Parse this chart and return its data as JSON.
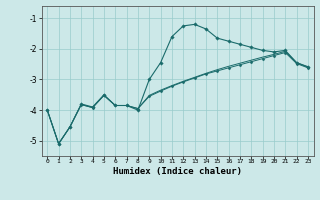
{
  "title": "",
  "xlabel": "Humidex (Indice chaleur)",
  "bg_color": "#cce8e8",
  "grid_color": "#99cccc",
  "line_color": "#1a6b6b",
  "xlim": [
    -0.5,
    23.5
  ],
  "ylim": [
    -5.5,
    -0.6
  ],
  "yticks": [
    -5,
    -4,
    -3,
    -2,
    -1
  ],
  "xticks": [
    0,
    1,
    2,
    3,
    4,
    5,
    6,
    7,
    8,
    9,
    10,
    11,
    12,
    13,
    14,
    15,
    16,
    17,
    18,
    19,
    20,
    21,
    22,
    23
  ],
  "curve1_x": [
    0,
    1,
    2,
    3,
    4,
    5,
    6,
    7,
    8,
    9,
    10,
    11,
    12,
    13,
    14,
    15,
    16,
    17,
    18,
    19,
    20,
    21,
    22,
    23
  ],
  "curve1_y": [
    -4.0,
    -5.1,
    -4.55,
    -3.8,
    -3.9,
    -3.5,
    -3.85,
    -3.85,
    -4.0,
    -3.0,
    -2.45,
    -1.6,
    -1.25,
    -1.2,
    -1.35,
    -1.65,
    -1.75,
    -1.85,
    -1.95,
    -2.05,
    -2.1,
    -2.05,
    -2.45,
    -2.6
  ],
  "curve2_x": [
    0,
    1,
    2,
    3,
    4,
    5,
    6,
    7,
    8,
    9,
    10,
    11,
    12,
    13,
    14,
    15,
    16,
    17,
    18,
    19,
    20,
    21,
    22,
    23
  ],
  "curve2_y": [
    -4.0,
    -5.1,
    -4.55,
    -3.82,
    -3.92,
    -3.52,
    -3.85,
    -3.85,
    -3.95,
    -3.55,
    -3.38,
    -3.22,
    -3.08,
    -2.95,
    -2.82,
    -2.72,
    -2.62,
    -2.52,
    -2.42,
    -2.32,
    -2.22,
    -2.12,
    -2.48,
    -2.62
  ],
  "curve3_x": [
    0,
    1,
    2,
    3,
    4,
    5,
    6,
    7,
    8,
    9,
    10,
    11,
    12,
    13,
    14,
    15,
    16,
    17,
    18,
    19,
    20,
    21,
    22,
    23
  ],
  "curve3_y": [
    -4.0,
    -5.1,
    -4.55,
    -3.82,
    -3.92,
    -3.52,
    -3.85,
    -3.85,
    -3.95,
    -3.52,
    -3.35,
    -3.2,
    -3.06,
    -2.93,
    -2.8,
    -2.68,
    -2.57,
    -2.47,
    -2.37,
    -2.27,
    -2.18,
    -2.08,
    -2.45,
    -2.58
  ]
}
